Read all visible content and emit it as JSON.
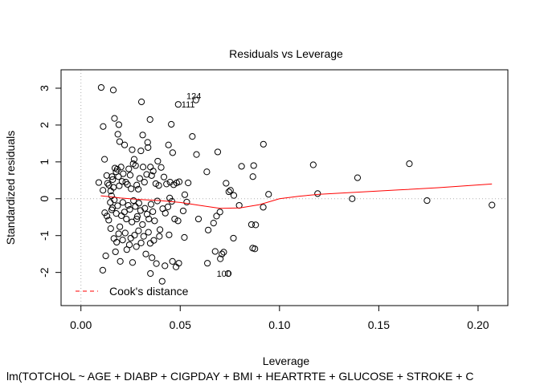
{
  "chart_data": {
    "type": "scatter",
    "title": "Residuals vs Leverage",
    "xlabel": "Leverage",
    "ylabel": "Standardized residuals",
    "caption": "lm(TOTCHOL ~ AGE + DIABP + CIGPDAY + BMI + HEARTRTE + GLUCOSE + STROKE + C",
    "xlim": [
      -0.01,
      0.215
    ],
    "ylim": [
      -2.9,
      3.5
    ],
    "xticks": [
      0.0,
      0.05,
      0.1,
      0.15,
      0.2
    ],
    "xtick_labels": [
      "0.00",
      "0.05",
      "0.10",
      "0.15",
      "0.20"
    ],
    "yticks": [
      -2,
      -1,
      0,
      1,
      2,
      3
    ],
    "ytick_labels": [
      "-2",
      "-1",
      "0",
      "1",
      "2",
      "3"
    ],
    "grid": false,
    "legend": {
      "position": "bottom-left",
      "entries": [
        {
          "label": "Cook's distance",
          "color": "#ff3333",
          "style": "dashed"
        }
      ]
    },
    "colors": {
      "points": "#000000",
      "smooth": "#ff0000",
      "reference": "#b0b0b0",
      "cook": "#ff3333"
    },
    "labeled_points": [
      {
        "label": "111",
        "x": 0.049,
        "y": 2.56
      },
      {
        "label": "124",
        "x": 0.058,
        "y": 2.68
      },
      {
        "label": "100",
        "x": 0.074,
        "y": -2.03
      }
    ],
    "smooth_curve": {
      "x": [
        0.01,
        0.02,
        0.03,
        0.04,
        0.05,
        0.06,
        0.07,
        0.08,
        0.09,
        0.1,
        0.11,
        0.12,
        0.14,
        0.16,
        0.18,
        0.207
      ],
      "y": [
        0.08,
        0.02,
        -0.02,
        -0.05,
        -0.1,
        -0.18,
        -0.26,
        -0.25,
        -0.16,
        0.0,
        0.07,
        0.12,
        0.18,
        0.24,
        0.3,
        0.4
      ]
    },
    "points": [
      [
        0.0102,
        3.02
      ],
      [
        0.0163,
        2.95
      ],
      [
        0.0305,
        2.63
      ],
      [
        0.049,
        2.56
      ],
      [
        0.0579,
        2.68
      ],
      [
        0.0112,
        1.96
      ],
      [
        0.0169,
        2.18
      ],
      [
        0.0191,
        2.01
      ],
      [
        0.0348,
        2.15
      ],
      [
        0.0455,
        2.02
      ],
      [
        0.0561,
        1.69
      ],
      [
        0.0311,
        1.73
      ],
      [
        0.0186,
        1.75
      ],
      [
        0.0195,
        1.55
      ],
      [
        0.022,
        1.46
      ],
      [
        0.0258,
        1.33
      ],
      [
        0.0302,
        1.3
      ],
      [
        0.0336,
        1.53
      ],
      [
        0.0338,
        1.39
      ],
      [
        0.0387,
        1.02
      ],
      [
        0.0441,
        1.46
      ],
      [
        0.0462,
        1.25
      ],
      [
        0.0582,
        1.2
      ],
      [
        0.0689,
        1.27
      ],
      [
        0.0919,
        1.48
      ],
      [
        0.009,
        0.44
      ],
      [
        0.0111,
        0.23
      ],
      [
        0.0119,
        1.07
      ],
      [
        0.013,
        0.63
      ],
      [
        0.0134,
        0.42
      ],
      [
        0.0141,
        0.37
      ],
      [
        0.015,
        0.21
      ],
      [
        0.0154,
        0.08
      ],
      [
        0.0156,
        0.6
      ],
      [
        0.016,
        0.52
      ],
      [
        0.0164,
        0.31
      ],
      [
        0.0171,
        0.83
      ],
      [
        0.0177,
        0.73
      ],
      [
        0.0183,
        0.8
      ],
      [
        0.0189,
        0.6
      ],
      [
        0.0193,
        0.35
      ],
      [
        0.0202,
        0.86
      ],
      [
        0.0207,
        0.47
      ],
      [
        0.0213,
        0.68
      ],
      [
        0.0226,
        0.45
      ],
      [
        0.0234,
        0.39
      ],
      [
        0.0241,
        0.81
      ],
      [
        0.0248,
        0.64
      ],
      [
        0.0253,
        0.27
      ],
      [
        0.0263,
        0.95
      ],
      [
        0.0268,
        1.07
      ],
      [
        0.0275,
        0.9
      ],
      [
        0.0281,
        0.37
      ],
      [
        0.0289,
        0.26
      ],
      [
        0.0296,
        0.55
      ],
      [
        0.0313,
        0.86
      ],
      [
        0.032,
        0.45
      ],
      [
        0.0331,
        0.66
      ],
      [
        0.035,
        0.86
      ],
      [
        0.0356,
        0.63
      ],
      [
        0.0364,
        0.75
      ],
      [
        0.0377,
        0.41
      ],
      [
        0.0392,
        0.36
      ],
      [
        0.0404,
        0.85
      ],
      [
        0.0418,
        0.59
      ],
      [
        0.0431,
        0.4
      ],
      [
        0.0449,
        0.45
      ],
      [
        0.0467,
        0.38
      ],
      [
        0.0482,
        0.43
      ],
      [
        0.0495,
        0.46
      ],
      [
        0.0523,
        0.11
      ],
      [
        0.0634,
        0.73
      ],
      [
        0.0731,
        0.42
      ],
      [
        0.0753,
        0.23
      ],
      [
        0.077,
        0.09
      ],
      [
        0.0809,
        0.88
      ],
      [
        0.0866,
        0.6
      ],
      [
        0.087,
        0.9
      ],
      [
        0.0945,
        0.12
      ],
      [
        0.117,
        0.92
      ],
      [
        0.1192,
        0.14
      ],
      [
        0.1366,
        0.0
      ],
      [
        0.1393,
        0.57
      ],
      [
        0.1654,
        0.95
      ],
      [
        0.1743,
        -0.05
      ],
      [
        0.207,
        -0.17
      ],
      [
        0.012,
        -0.38
      ],
      [
        0.0131,
        -0.47
      ],
      [
        0.014,
        -0.58
      ],
      [
        0.0148,
        -0.1
      ],
      [
        0.0159,
        -0.25
      ],
      [
        0.0168,
        -0.03
      ],
      [
        0.0178,
        -0.4
      ],
      [
        0.0185,
        -0.19
      ],
      [
        0.0196,
        -0.76
      ],
      [
        0.0204,
        -0.46
      ],
      [
        0.0211,
        -0.1
      ],
      [
        0.0219,
        -0.36
      ],
      [
        0.0229,
        -0.55
      ],
      [
        0.0238,
        -0.18
      ],
      [
        0.0246,
        -0.29
      ],
      [
        0.0257,
        -0.63
      ],
      [
        0.0265,
        -0.05
      ],
      [
        0.0274,
        -0.21
      ],
      [
        0.0284,
        -0.48
      ],
      [
        0.0292,
        -0.12
      ],
      [
        0.03,
        -0.32
      ],
      [
        0.031,
        -0.7
      ],
      [
        0.0322,
        -0.26
      ],
      [
        0.0333,
        -0.42
      ],
      [
        0.0342,
        -0.55
      ],
      [
        0.0353,
        -0.15
      ],
      [
        0.0362,
        -0.35
      ],
      [
        0.0371,
        -0.6
      ],
      [
        0.0385,
        -0.06
      ],
      [
        0.0398,
        -0.84
      ],
      [
        0.0412,
        -0.27
      ],
      [
        0.0425,
        -0.39
      ],
      [
        0.0438,
        -0.22
      ],
      [
        0.0447,
        0.02
      ],
      [
        0.0458,
        -0.07
      ],
      [
        0.0472,
        -0.55
      ],
      [
        0.0489,
        -0.6
      ],
      [
        0.0515,
        -0.33
      ],
      [
        0.0533,
        -0.09
      ],
      [
        0.0592,
        -0.55
      ],
      [
        0.0641,
        -0.85
      ],
      [
        0.0668,
        -0.66
      ],
      [
        0.0683,
        -0.47
      ],
      [
        0.07,
        -0.36
      ],
      [
        0.0797,
        -0.18
      ],
      [
        0.0859,
        -0.7
      ],
      [
        0.088,
        -0.71
      ],
      [
        0.0918,
        -0.23
      ],
      [
        0.0745,
        0.19
      ],
      [
        0.054,
        0.43
      ],
      [
        0.011,
        -1.94
      ],
      [
        0.0125,
        -1.55
      ],
      [
        0.015,
        -0.81
      ],
      [
        0.0166,
        -1.08
      ],
      [
        0.0174,
        -1.44
      ],
      [
        0.018,
        -1.18
      ],
      [
        0.019,
        -0.95
      ],
      [
        0.0198,
        -1.7
      ],
      [
        0.021,
        -1.12
      ],
      [
        0.0223,
        -0.93
      ],
      [
        0.0231,
        -1.38
      ],
      [
        0.0244,
        -1.25
      ],
      [
        0.0251,
        -1.07
      ],
      [
        0.026,
        -1.73
      ],
      [
        0.027,
        -0.99
      ],
      [
        0.0279,
        -1.3
      ],
      [
        0.029,
        -0.87
      ],
      [
        0.0303,
        -1.2
      ],
      [
        0.0316,
        -1.02
      ],
      [
        0.0327,
        -1.5
      ],
      [
        0.034,
        -0.91
      ],
      [
        0.0349,
        -1.21
      ],
      [
        0.0358,
        -1.6
      ],
      [
        0.0367,
        -1.13
      ],
      [
        0.038,
        -1.76
      ],
      [
        0.0395,
        -1.02
      ],
      [
        0.0409,
        -2.24
      ],
      [
        0.0423,
        -1.82
      ],
      [
        0.0444,
        -0.98
      ],
      [
        0.0461,
        -1.7
      ],
      [
        0.0479,
        -1.85
      ],
      [
        0.0493,
        -1.75
      ],
      [
        0.0521,
        -1.05
      ],
      [
        0.0637,
        -1.75
      ],
      [
        0.0676,
        -1.43
      ],
      [
        0.0702,
        -1.63
      ],
      [
        0.071,
        -1.5
      ],
      [
        0.0719,
        -1.45
      ],
      [
        0.0742,
        -2.03
      ],
      [
        0.0768,
        -1.07
      ],
      [
        0.0865,
        -1.34
      ],
      [
        0.0876,
        -1.36
      ],
      [
        0.035,
        -2.03
      ],
      [
        0.0281,
        -0.55
      ],
      [
        0.0155,
        -0.3
      ]
    ]
  }
}
